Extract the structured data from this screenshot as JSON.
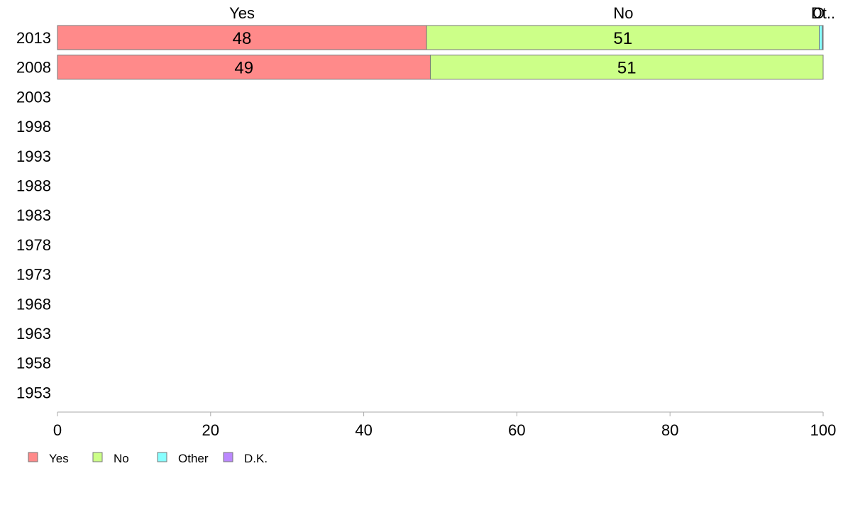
{
  "chart_data": {
    "type": "bar",
    "orientation": "horizontal",
    "stacked": true,
    "title": "",
    "xlabel": "",
    "ylabel": "",
    "xlim": [
      0,
      100
    ],
    "x_ticks": [
      0,
      20,
      40,
      60,
      80,
      100
    ],
    "categories": [
      "2013",
      "2008",
      "2003",
      "1998",
      "1993",
      "1988",
      "1983",
      "1978",
      "1973",
      "1968",
      "1963",
      "1958",
      "1953"
    ],
    "series": [
      {
        "name": "Yes",
        "color": "#ff8a8a",
        "values": [
          48.2,
          48.7,
          null,
          null,
          null,
          null,
          null,
          null,
          null,
          null,
          null,
          null,
          null
        ],
        "labels": [
          "48",
          "49",
          "",
          "",
          "",
          "",
          "",
          "",
          "",
          "",
          "",
          "",
          ""
        ]
      },
      {
        "name": "No",
        "color": "#ccff88",
        "values": [
          51.3,
          51.3,
          null,
          null,
          null,
          null,
          null,
          null,
          null,
          null,
          null,
          null,
          null
        ],
        "labels": [
          "51",
          "51",
          "",
          "",
          "",
          "",
          "",
          "",
          "",
          "",
          "",
          "",
          ""
        ]
      },
      {
        "name": "Other",
        "color": "#88ffff",
        "values": [
          0.4,
          0,
          null,
          null,
          null,
          null,
          null,
          null,
          null,
          null,
          null,
          null,
          null
        ],
        "labels": [
          "",
          "",
          "",
          "",
          "",
          "",
          "",
          "",
          "",
          "",
          "",
          "",
          ""
        ]
      },
      {
        "name": "D.K.",
        "color": "#bb88ff",
        "values": [
          0.1,
          0,
          null,
          null,
          null,
          null,
          null,
          null,
          null,
          null,
          null,
          null,
          null
        ],
        "labels": [
          "",
          "",
          "",
          "",
          "",
          "",
          "",
          "",
          "",
          "",
          "",
          "",
          ""
        ]
      }
    ],
    "column_labels": [
      {
        "text": "Yes",
        "x": 24.1
      },
      {
        "text": "No",
        "x": 73.9
      },
      {
        "text": "O",
        "x": 99.4
      },
      {
        "text": "Dt..",
        "x": 100
      }
    ],
    "legend": {
      "placement": "bottom-left",
      "items": [
        "Yes",
        "No",
        "Other",
        "D.K."
      ]
    },
    "grid": false
  }
}
